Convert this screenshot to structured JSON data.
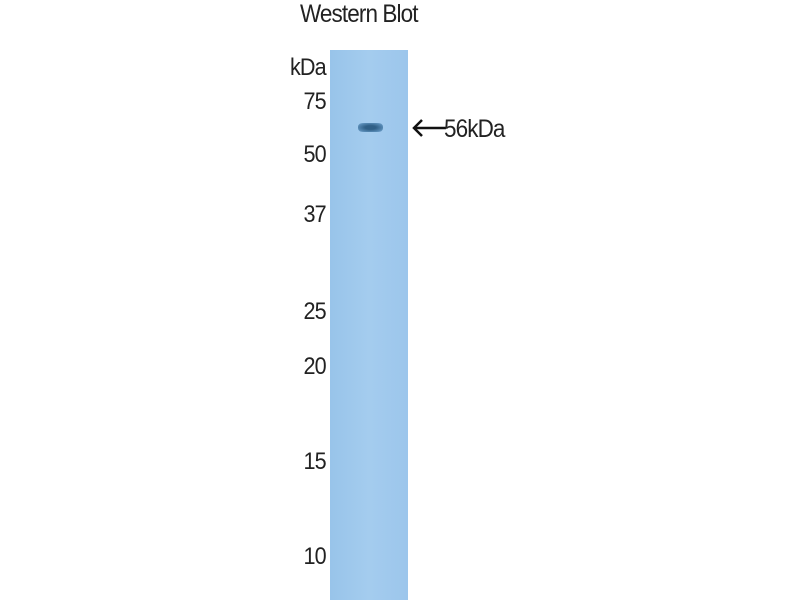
{
  "title": "Western Blot",
  "unit_label": "kDa",
  "markers": [
    "75",
    "50",
    "37",
    "25",
    "20",
    "15",
    "10"
  ],
  "band_label": "56kDa",
  "colors": {
    "membrane": "#9ec8ec",
    "band": "#2f5f86",
    "text": "#222222"
  }
}
